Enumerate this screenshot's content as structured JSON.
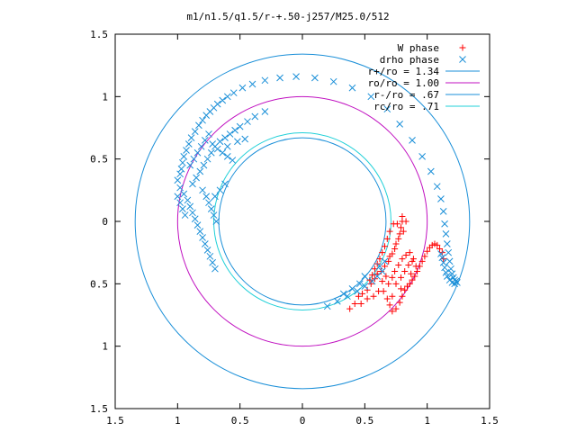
{
  "chart_data": {
    "type": "scatter",
    "title": "m1/n1.5/q1.5/r-+.50-j257/M25.0/512",
    "xlabel": "",
    "ylabel": "",
    "xlim": [
      -1.5,
      1.5
    ],
    "ylim": [
      -1.5,
      1.5
    ],
    "xtick_labels": [
      "1.5",
      "1",
      "0.5",
      "0",
      "0.5",
      "1",
      "1.5"
    ],
    "ytick_labels": [
      "1.5",
      "1",
      "0.5",
      "0",
      "0.5",
      "1",
      "1.5"
    ],
    "grid": false,
    "legend_position": "top-right",
    "colors": {
      "w_phase": "#ff0000",
      "drho_phase": "#1a8fd8",
      "r_plus": "#1a8fd8",
      "r_o": "#c010c0",
      "r_minus": "#1a8fd8",
      "r_c": "#20d0d8"
    },
    "series": [
      {
        "name": "W phase",
        "marker": "plus",
        "points": [
          [
            0.38,
            -0.7
          ],
          [
            0.42,
            -0.66
          ],
          [
            0.45,
            -0.6
          ],
          [
            0.48,
            -0.58
          ],
          [
            0.52,
            -0.55
          ],
          [
            0.55,
            -0.5
          ],
          [
            0.58,
            -0.46
          ],
          [
            0.6,
            -0.42
          ],
          [
            0.63,
            -0.4
          ],
          [
            0.66,
            -0.36
          ],
          [
            0.69,
            -0.32
          ],
          [
            0.7,
            -0.28
          ],
          [
            0.72,
            -0.26
          ],
          [
            0.74,
            -0.22
          ],
          [
            0.75,
            -0.18
          ],
          [
            0.77,
            -0.14
          ],
          [
            0.78,
            -0.1
          ],
          [
            0.79,
            -0.05
          ],
          [
            0.8,
            0.0
          ],
          [
            0.8,
            0.04
          ],
          [
            0.73,
            -0.02
          ],
          [
            0.7,
            -0.08
          ],
          [
            0.68,
            -0.14
          ],
          [
            0.66,
            -0.2
          ],
          [
            0.64,
            -0.25
          ],
          [
            0.62,
            -0.3
          ],
          [
            0.6,
            -0.34
          ],
          [
            0.58,
            -0.38
          ],
          [
            0.56,
            -0.43
          ],
          [
            0.54,
            -0.47
          ],
          [
            0.65,
            -0.56
          ],
          [
            0.68,
            -0.62
          ],
          [
            0.7,
            -0.67
          ],
          [
            0.72,
            -0.72
          ],
          [
            0.75,
            -0.7
          ],
          [
            0.78,
            -0.65
          ],
          [
            0.8,
            -0.6
          ],
          [
            0.82,
            -0.55
          ],
          [
            0.84,
            -0.52
          ],
          [
            0.86,
            -0.5
          ],
          [
            0.88,
            -0.47
          ],
          [
            0.9,
            -0.44
          ],
          [
            0.92,
            -0.4
          ],
          [
            0.94,
            -0.36
          ],
          [
            0.96,
            -0.32
          ],
          [
            0.98,
            -0.28
          ],
          [
            1.0,
            -0.24
          ],
          [
            1.02,
            -0.21
          ],
          [
            1.04,
            -0.19
          ],
          [
            1.06,
            -0.18
          ],
          [
            1.08,
            -0.19
          ],
          [
            1.1,
            -0.22
          ],
          [
            1.12,
            -0.25
          ],
          [
            1.13,
            -0.3
          ],
          [
            0.74,
            -0.4
          ],
          [
            0.77,
            -0.35
          ],
          [
            0.8,
            -0.3
          ],
          [
            0.83,
            -0.27
          ],
          [
            0.86,
            -0.25
          ],
          [
            0.89,
            -0.3
          ],
          [
            0.72,
            -0.45
          ],
          [
            0.75,
            -0.5
          ],
          [
            0.79,
            -0.45
          ],
          [
            0.82,
            -0.4
          ],
          [
            0.85,
            -0.35
          ],
          [
            0.88,
            -0.32
          ],
          [
            0.64,
            -0.48
          ],
          [
            0.67,
            -0.44
          ],
          [
            0.69,
            -0.5
          ],
          [
            0.61,
            -0.56
          ],
          [
            0.57,
            -0.6
          ],
          [
            0.52,
            -0.62
          ],
          [
            0.47,
            -0.66
          ],
          [
            0.83,
            0.0
          ],
          [
            0.81,
            -0.08
          ],
          [
            0.76,
            -0.02
          ],
          [
            0.72,
            -0.6
          ],
          [
            0.79,
            -0.54
          ],
          [
            0.87,
            -0.42
          ],
          [
            0.91,
            -0.36
          ]
        ]
      },
      {
        "name": "drho phase",
        "marker": "x",
        "points": [
          [
            -1.0,
            0.33
          ],
          [
            -0.98,
            0.38
          ],
          [
            -0.97,
            0.42
          ],
          [
            -0.96,
            0.47
          ],
          [
            -0.95,
            0.52
          ],
          [
            -0.93,
            0.57
          ],
          [
            -0.91,
            0.62
          ],
          [
            -0.89,
            0.67
          ],
          [
            -0.86,
            0.72
          ],
          [
            -0.83,
            0.77
          ],
          [
            -0.8,
            0.81
          ],
          [
            -0.77,
            0.85
          ],
          [
            -0.74,
            0.88
          ],
          [
            -0.71,
            0.91
          ],
          [
            -0.68,
            0.94
          ],
          [
            -0.64,
            0.97
          ],
          [
            -0.6,
            1.0
          ],
          [
            -0.55,
            1.03
          ],
          [
            -0.48,
            1.07
          ],
          [
            -0.4,
            1.1
          ],
          [
            -0.3,
            1.13
          ],
          [
            -0.18,
            1.15
          ],
          [
            -0.05,
            1.16
          ],
          [
            0.1,
            1.15
          ],
          [
            0.25,
            1.12
          ],
          [
            0.4,
            1.07
          ],
          [
            0.55,
            1.0
          ],
          [
            0.68,
            0.9
          ],
          [
            0.78,
            0.78
          ],
          [
            0.88,
            0.65
          ],
          [
            0.96,
            0.52
          ],
          [
            1.03,
            0.4
          ],
          [
            1.08,
            0.28
          ],
          [
            1.11,
            0.18
          ],
          [
            1.13,
            0.08
          ],
          [
            1.14,
            -0.02
          ],
          [
            1.15,
            -0.1
          ],
          [
            1.16,
            -0.18
          ],
          [
            1.17,
            -0.25
          ],
          [
            1.18,
            -0.32
          ],
          [
            1.19,
            -0.38
          ],
          [
            1.2,
            -0.42
          ],
          [
            1.21,
            -0.45
          ],
          [
            1.22,
            -0.47
          ],
          [
            1.23,
            -0.48
          ],
          [
            1.24,
            -0.49
          ],
          [
            1.22,
            -0.5
          ],
          [
            1.2,
            -0.49
          ],
          [
            1.18,
            -0.47
          ],
          [
            1.16,
            -0.44
          ],
          [
            1.15,
            -0.41
          ],
          [
            1.14,
            -0.37
          ],
          [
            1.13,
            -0.33
          ],
          [
            1.12,
            -0.29
          ],
          [
            1.11,
            -0.26
          ],
          [
            -0.98,
            0.27
          ],
          [
            -0.95,
            0.22
          ],
          [
            -0.92,
            0.17
          ],
          [
            -0.9,
            0.12
          ],
          [
            -0.88,
            0.07
          ],
          [
            -0.86,
            0.02
          ],
          [
            -0.84,
            -0.03
          ],
          [
            -0.82,
            -0.08
          ],
          [
            -0.8,
            -0.13
          ],
          [
            -0.78,
            -0.18
          ],
          [
            -0.76,
            -0.23
          ],
          [
            -0.74,
            -0.28
          ],
          [
            -0.72,
            -0.33
          ],
          [
            -0.7,
            -0.38
          ],
          [
            -0.88,
            0.3
          ],
          [
            -0.85,
            0.35
          ],
          [
            -0.82,
            0.4
          ],
          [
            -0.79,
            0.45
          ],
          [
            -0.76,
            0.5
          ],
          [
            -0.73,
            0.55
          ],
          [
            -0.7,
            0.6
          ],
          [
            -0.66,
            0.64
          ],
          [
            -0.62,
            0.67
          ],
          [
            -0.58,
            0.7
          ],
          [
            -0.54,
            0.73
          ],
          [
            -0.5,
            0.76
          ],
          [
            -0.44,
            0.8
          ],
          [
            -0.38,
            0.84
          ],
          [
            -0.3,
            0.88
          ],
          [
            -0.8,
            0.25
          ],
          [
            -0.77,
            0.2
          ],
          [
            -0.75,
            0.15
          ],
          [
            -0.73,
            0.1
          ],
          [
            -0.71,
            0.05
          ],
          [
            -0.69,
            0.0
          ],
          [
            -0.9,
            0.45
          ],
          [
            -0.87,
            0.5
          ],
          [
            -0.84,
            0.55
          ],
          [
            -0.81,
            0.6
          ],
          [
            -0.78,
            0.65
          ],
          [
            -0.75,
            0.7
          ],
          [
            -0.72,
            0.62
          ],
          [
            -0.68,
            0.58
          ],
          [
            -0.64,
            0.55
          ],
          [
            -0.6,
            0.52
          ],
          [
            -0.56,
            0.49
          ],
          [
            0.2,
            -0.68
          ],
          [
            0.28,
            -0.64
          ],
          [
            0.36,
            -0.6
          ],
          [
            0.44,
            -0.56
          ],
          [
            0.5,
            -0.52
          ],
          [
            0.56,
            -0.48
          ],
          [
            0.6,
            -0.44
          ],
          [
            0.64,
            -0.4
          ],
          [
            0.46,
            -0.5
          ],
          [
            0.4,
            -0.54
          ],
          [
            0.33,
            -0.58
          ],
          [
            0.62,
            -0.36
          ],
          [
            0.66,
            -0.32
          ],
          [
            0.5,
            -0.44
          ],
          [
            -0.7,
            0.2
          ],
          [
            -0.66,
            0.25
          ],
          [
            -0.62,
            0.3
          ],
          [
            -0.94,
            0.05
          ],
          [
            -0.96,
            0.1
          ],
          [
            -0.98,
            0.15
          ],
          [
            -1.0,
            0.2
          ],
          [
            -0.6,
            0.6
          ],
          [
            -0.52,
            0.64
          ],
          [
            -0.46,
            0.66
          ]
        ]
      }
    ],
    "circles": [
      {
        "name": "r+/ro = 1.34",
        "r": 1.34,
        "cx": 0,
        "cy": 0
      },
      {
        "name": "ro/ro = 1.00",
        "r": 1.0,
        "cx": 0,
        "cy": 0
      },
      {
        "name": "r-/ro = .67",
        "r": 0.67,
        "cx": 0,
        "cy": 0
      },
      {
        "name": "rc/ro = .71",
        "r": 0.71,
        "cx": 0,
        "cy": 0
      }
    ]
  }
}
